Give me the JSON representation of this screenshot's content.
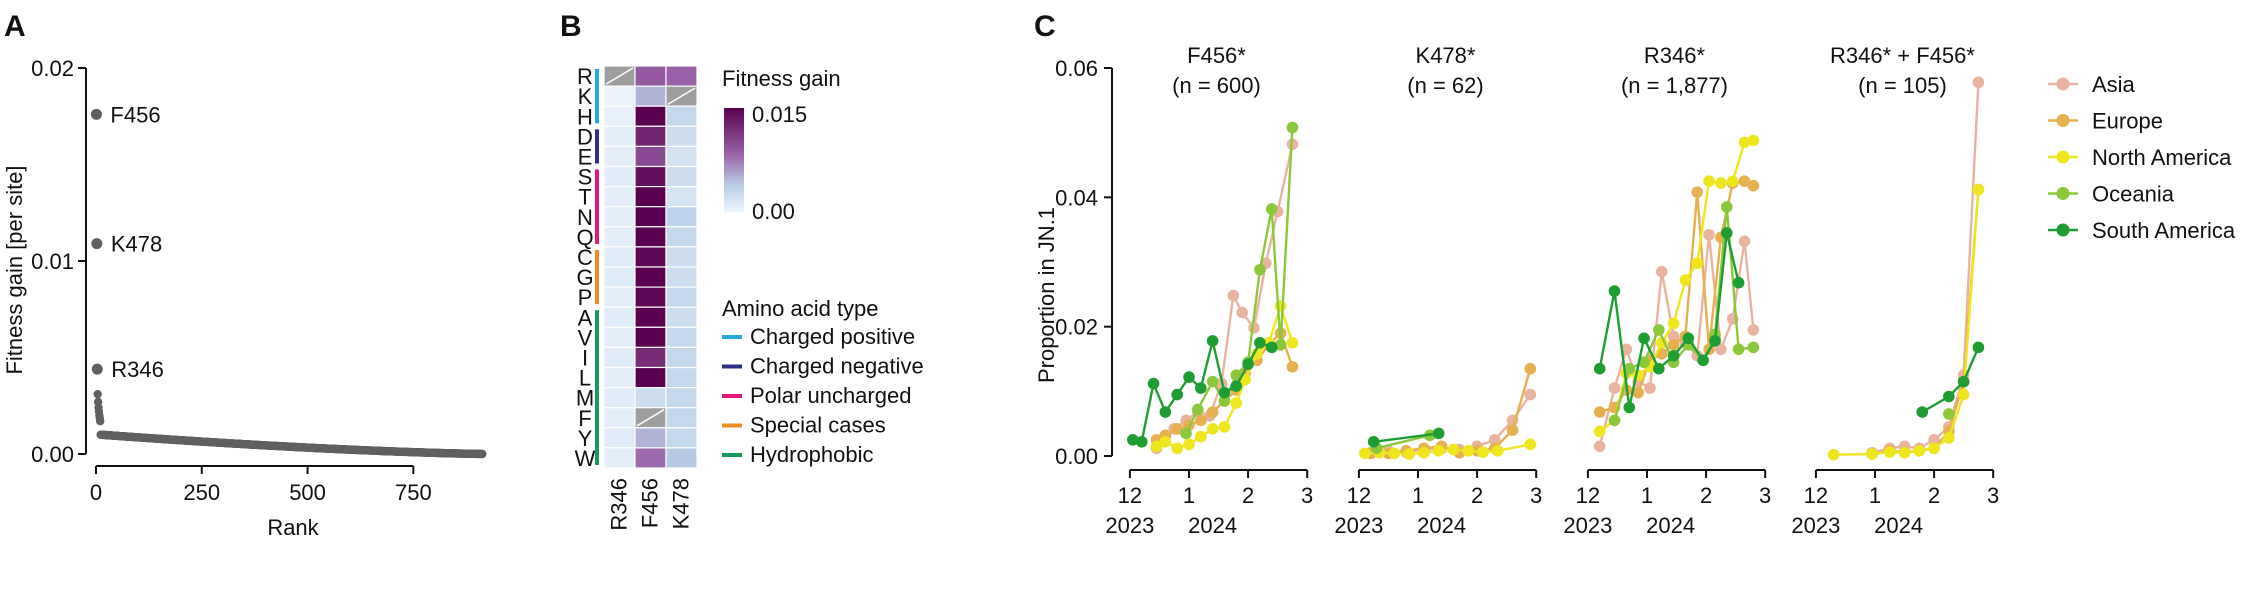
{
  "panel_labels": {
    "a": "A",
    "b": "B",
    "c": "C"
  },
  "colors": {
    "asia": "#E8B4A0",
    "europe": "#E6B050",
    "north_america": "#F0E61E",
    "oceania": "#8CC83C",
    "south_america": "#1E9E32",
    "charged_positive": "#29A8E0",
    "charged_negative": "#2E3087",
    "polar_uncharged": "#E5157A",
    "special_cases": "#F08A24",
    "hydrophobic": "#1A9B5E",
    "dot_gray": "#606060",
    "heat_low": "#E4F1FB",
    "heat_high": "#5A0050",
    "missing": "#A9A9A9"
  },
  "chart_data": [
    {
      "id": "A",
      "type": "scatter",
      "xlabel": "Rank",
      "ylabel": "Fitness gain [per site]",
      "xlim": [
        -20,
        920
      ],
      "ylim": [
        0,
        0.02
      ],
      "xticks": [
        "0",
        "250",
        "500",
        "750"
      ],
      "yticks": [
        "0.00",
        "0.01",
        "0.02"
      ],
      "xtick_values": [
        0,
        250,
        500,
        750
      ],
      "ytick_values": [
        0,
        0.01,
        0.02
      ],
      "grid": false,
      "labeled_points": [
        {
          "label": "F456",
          "rank": 1,
          "value": 0.0176
        },
        {
          "label": "K478",
          "rank": 2,
          "value": 0.0109
        },
        {
          "label": "R346",
          "rank": 3,
          "value": 0.0044
        }
      ],
      "n_points": 910,
      "curve": {
        "head": [
          0.0031,
          0.0027,
          0.0024,
          0.0022,
          0.002,
          0.00185,
          0.0017
        ],
        "tail_start": 0.001,
        "tail_end": 0.0
      }
    },
    {
      "id": "B",
      "type": "heatmap",
      "colorbar_title": "Fitness gain",
      "colorbar_ticks": [
        "0.015",
        "0.00"
      ],
      "colorbar_range": [
        0,
        0.015
      ],
      "columns": [
        "R346",
        "F456",
        "K478"
      ],
      "rows": [
        "R",
        "K",
        "H",
        "D",
        "E",
        "S",
        "T",
        "N",
        "Q",
        "C",
        "G",
        "P",
        "A",
        "V",
        "I",
        "L",
        "M",
        "F",
        "Y",
        "W"
      ],
      "values": [
        [
          null,
          0.009,
          0.0085
        ],
        [
          0.0003,
          0.005,
          null
        ],
        [
          0.0005,
          0.015,
          0.003
        ],
        [
          0.0008,
          0.0125,
          0.0025
        ],
        [
          0.0008,
          0.01,
          0.002
        ],
        [
          0.001,
          0.014,
          0.0025
        ],
        [
          0.0008,
          0.015,
          0.0018
        ],
        [
          0.0008,
          0.015,
          0.0035
        ],
        [
          0.0008,
          0.015,
          0.003
        ],
        [
          0.001,
          0.0145,
          0.0025
        ],
        [
          0.001,
          0.015,
          0.0025
        ],
        [
          0.0008,
          0.0145,
          0.003
        ],
        [
          0.001,
          0.015,
          0.0025
        ],
        [
          0.0008,
          0.015,
          0.0028
        ],
        [
          0.001,
          0.012,
          0.003
        ],
        [
          0.0008,
          0.015,
          0.003
        ],
        [
          0.001,
          0.0025,
          0.003
        ],
        [
          0.0008,
          null,
          0.003
        ],
        [
          0.001,
          0.005,
          0.003
        ],
        [
          0.0008,
          0.008,
          0.004
        ]
      ],
      "groups_title": "Amino acid type",
      "groups": [
        {
          "name": "Charged positive",
          "rows": [
            "R",
            "K",
            "H"
          ],
          "color": "#29A8E0"
        },
        {
          "name": "Charged negative",
          "rows": [
            "D",
            "E"
          ],
          "color": "#2E3087"
        },
        {
          "name": "Polar uncharged",
          "rows": [
            "S",
            "T",
            "N",
            "Q"
          ],
          "color": "#E5157A"
        },
        {
          "name": "Special cases",
          "rows": [
            "C",
            "G",
            "P"
          ],
          "color": "#F08A24"
        },
        {
          "name": "Hydrophobic",
          "rows": [
            "A",
            "V",
            "I",
            "L",
            "M",
            "F",
            "Y",
            "W"
          ],
          "color": "#1A9B5E"
        }
      ]
    },
    {
      "id": "C",
      "type": "line",
      "ylabel": "Proportion in JN.1",
      "ylim": [
        0,
        0.06
      ],
      "yticks": [
        "0.00",
        "0.02",
        "0.04",
        "0.06"
      ],
      "ytick_values": [
        0,
        0.02,
        0.04,
        0.06
      ],
      "xlim": [
        11.9,
        15.2
      ],
      "xticks": [
        "12",
        "1",
        "2",
        "3"
      ],
      "xtick_values": [
        12,
        13,
        14,
        15
      ],
      "year_labels": [
        {
          "label": "2023",
          "x": 12
        },
        {
          "label": "2024",
          "x": 13.4
        }
      ],
      "legend_position": "right",
      "legend": [
        "Asia",
        "Europe",
        "North America",
        "Oceania",
        "South America"
      ],
      "facets": [
        {
          "title": "F456*",
          "subtitle": "(n = 600)",
          "series": [
            {
              "name": "Asia",
              "x": [
                12.45,
                12.6,
                12.75,
                12.95,
                13.15,
                13.35,
                13.55,
                13.75,
                13.9,
                14.1,
                14.3,
                14.5,
                14.75
              ],
              "y": [
                0.0012,
                0.003,
                0.0042,
                0.0055,
                0.0068,
                0.0062,
                0.0112,
                0.0248,
                0.0222,
                0.0198,
                0.0298,
                0.0378,
                0.0482
              ]
            },
            {
              "name": "Europe",
              "x": [
                12.45,
                12.6,
                12.8,
                13.0,
                13.2,
                13.4,
                13.6,
                13.8,
                13.95,
                14.15,
                14.35,
                14.55,
                14.75
              ],
              "y": [
                0.0025,
                0.0032,
                0.0042,
                0.0048,
                0.0055,
                0.0068,
                0.0085,
                0.0102,
                0.0128,
                0.0148,
                0.0172,
                0.019,
                0.0138
              ]
            },
            {
              "name": "North America",
              "x": [
                12.45,
                12.6,
                12.8,
                13.0,
                13.2,
                13.4,
                13.6,
                13.8,
                13.95,
                14.15,
                14.35,
                14.55,
                14.75
              ],
              "y": [
                0.0015,
                0.0022,
                0.0012,
                0.0018,
                0.003,
                0.0042,
                0.0045,
                0.0082,
                0.0118,
                0.0158,
                0.0175,
                0.0232,
                0.0175
              ]
            },
            {
              "name": "Oceania",
              "x": [
                12.95,
                13.15,
                13.4,
                13.6,
                13.8,
                14.0,
                14.2,
                14.4,
                14.55,
                14.75
              ],
              "y": [
                0.0035,
                0.0072,
                0.0115,
                0.0085,
                0.0125,
                0.0145,
                0.0288,
                0.0382,
                0.0172,
                0.0508
              ]
            },
            {
              "name": "South America",
              "x": [
                12.05,
                12.2,
                12.4,
                12.6,
                12.8,
                13.0,
                13.2,
                13.4,
                13.6,
                13.8,
                14.0,
                14.2,
                14.4
              ],
              "y": [
                0.0025,
                0.0022,
                0.0112,
                0.0068,
                0.0095,
                0.0122,
                0.0105,
                0.0178,
                0.0098,
                0.0108,
                0.0142,
                0.0175,
                0.0168
              ]
            }
          ]
        },
        {
          "title": "K478*",
          "subtitle": "(n = 62)",
          "series": [
            {
              "name": "Asia",
              "x": [
                12.2,
                12.5,
                12.8,
                13.1,
                13.4,
                13.7,
                14.0,
                14.3,
                14.6,
                14.9
              ],
              "y": [
                0.0005,
                0.0008,
                0.0006,
                0.001,
                0.0012,
                0.001,
                0.0015,
                0.0025,
                0.0055,
                0.0095
              ]
            },
            {
              "name": "Europe",
              "x": [
                12.2,
                12.5,
                12.8,
                13.1,
                13.4,
                13.7,
                14.0,
                14.3,
                14.6,
                14.9
              ],
              "y": [
                0.0004,
                0.0004,
                0.0008,
                0.0012,
                0.0015,
                0.0005,
                0.0008,
                0.0012,
                0.004,
                0.0135
              ]
            },
            {
              "name": "North America",
              "x": [
                12.1,
                12.35,
                12.6,
                12.85,
                13.1,
                13.35,
                13.6,
                13.85,
                14.1,
                14.35,
                14.9
              ],
              "y": [
                0.0004,
                0.0005,
                0.0004,
                0.0003,
                0.0005,
                0.0008,
                0.001,
                0.0008,
                0.0006,
                0.0008,
                0.0018
              ]
            },
            {
              "name": "Oceania",
              "x": [
                12.3,
                13.2
              ],
              "y": [
                0.0012,
                0.0032
              ]
            },
            {
              "name": "South America",
              "x": [
                12.25,
                13.35
              ],
              "y": [
                0.0022,
                0.0035
              ]
            }
          ]
        },
        {
          "title": "R346*",
          "subtitle": "(n = 1,877)",
          "series": [
            {
              "name": "Asia",
              "x": [
                12.2,
                12.45,
                12.65,
                12.85,
                13.05,
                13.25,
                13.45,
                13.65,
                13.85,
                14.05,
                14.25,
                14.45,
                14.65,
                14.8
              ],
              "y": [
                0.0015,
                0.0105,
                0.0165,
                0.0115,
                0.0105,
                0.0285,
                0.0185,
                0.0175,
                0.0155,
                0.0342,
                0.0165,
                0.0212,
                0.0332,
                0.0195
              ]
            },
            {
              "name": "Europe",
              "x": [
                12.2,
                12.45,
                12.65,
                12.85,
                13.05,
                13.25,
                13.45,
                13.65,
                13.85,
                14.05,
                14.25,
                14.45,
                14.65,
                14.8
              ],
              "y": [
                0.0068,
                0.0075,
                0.0102,
                0.0098,
                0.0148,
                0.0158,
                0.0172,
                0.0185,
                0.0408,
                0.0165,
                0.0338,
                0.0422,
                0.0425,
                0.0418
              ]
            },
            {
              "name": "North America",
              "x": [
                12.2,
                12.45,
                12.65,
                12.85,
                13.05,
                13.25,
                13.45,
                13.65,
                13.85,
                14.05,
                14.25,
                14.45,
                14.65,
                14.8
              ],
              "y": [
                0.0038,
                0.0055,
                0.0128,
                0.0125,
                0.0138,
                0.0175,
                0.0205,
                0.0272,
                0.0298,
                0.0425,
                0.0422,
                0.0425,
                0.0485,
                0.0488
              ]
            },
            {
              "name": "Oceania",
              "x": [
                12.45,
                12.7,
                12.95,
                13.2,
                13.45,
                13.7,
                13.95,
                14.15,
                14.35,
                14.55,
                14.8
              ],
              "y": [
                0.0055,
                0.0135,
                0.0145,
                0.0195,
                0.0145,
                0.0172,
                0.0148,
                0.0188,
                0.0385,
                0.0165,
                0.0168
              ]
            },
            {
              "name": "South America",
              "x": [
                12.2,
                12.45,
                12.7,
                12.95,
                13.2,
                13.45,
                13.7,
                13.95,
                14.15,
                14.35,
                14.55
              ],
              "y": [
                0.0135,
                0.0255,
                0.0075,
                0.0182,
                0.0135,
                0.0155,
                0.0182,
                0.0148,
                0.0178,
                0.0345,
                0.0268
              ]
            }
          ]
        },
        {
          "title": "R346* + F456*",
          "subtitle": "(n = 105)",
          "series": [
            {
              "name": "Asia",
              "x": [
                12.95,
                13.25,
                13.5,
                13.75,
                14.0,
                14.25,
                14.5,
                14.75
              ],
              "y": [
                0.0005,
                0.0012,
                0.0015,
                0.0012,
                0.0025,
                0.0045,
                0.0125,
                0.0578
              ]
            },
            {
              "name": "Europe",
              "x": [
                12.95,
                13.25,
                13.5,
                13.75,
                14.0,
                14.25,
                14.5,
                14.75
              ],
              "y": [
                0.0003,
                0.0008,
                0.0006,
                0.0008,
                0.0012,
                0.0038,
                0.0115,
                0.0412
              ]
            },
            {
              "name": "North America",
              "x": [
                12.3,
                12.95,
                13.25,
                13.5,
                13.75,
                14.0,
                14.25,
                14.5,
                14.75
              ],
              "y": [
                0.0002,
                0.0003,
                0.0006,
                0.0005,
                0.0008,
                0.0012,
                0.0028,
                0.0095,
                0.0412
              ]
            },
            {
              "name": "Oceania",
              "x": [
                14.25
              ],
              "y": [
                0.0065
              ]
            },
            {
              "name": "South America",
              "x": [
                13.8,
                14.25,
                14.5,
                14.75
              ],
              "y": [
                0.0068,
                0.0092,
                0.0115,
                0.0168
              ]
            }
          ]
        }
      ]
    }
  ]
}
